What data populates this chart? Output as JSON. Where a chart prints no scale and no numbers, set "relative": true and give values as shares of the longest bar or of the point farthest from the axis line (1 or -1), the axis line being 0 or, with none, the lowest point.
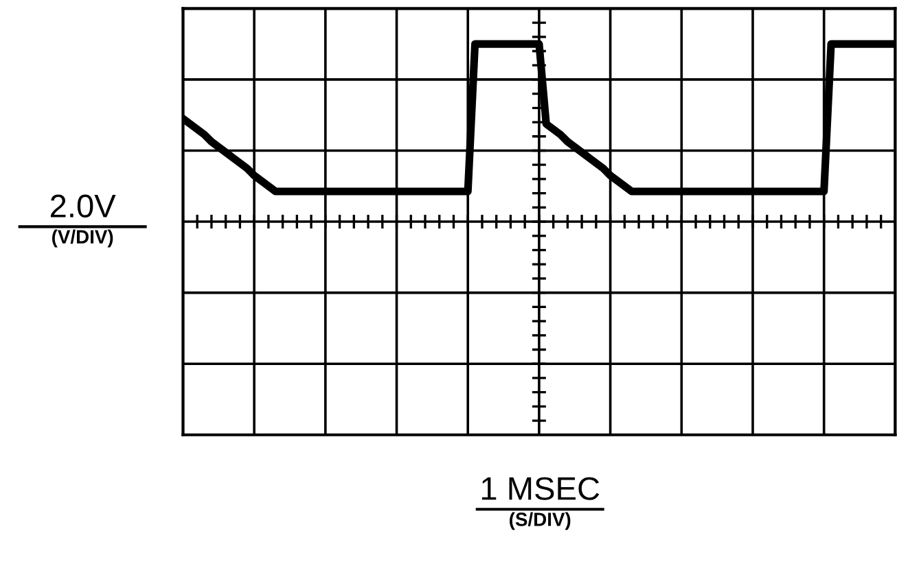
{
  "chart_data": {
    "type": "line",
    "relative": true,
    "annotations": [
      "1 MSEC\n(S/DIV)"
    ],
    "ylabel": "2.0V\n(V/DIV)",
    "categories": [
      null,
      null,
      null,
      null,
      null,
      null,
      null,
      null,
      null,
      null,
      null,
      null,
      null,
      null,
      null,
      null,
      null,
      null,
      null,
      null,
      null,
      null,
      null,
      null,
      null,
      null,
      null,
      null,
      null,
      null,
      null,
      null,
      null,
      null,
      null,
      null,
      null,
      null,
      null,
      null,
      null,
      null,
      null,
      null,
      null,
      null,
      null,
      null,
      null,
      null,
      null,
      null,
      null,
      null,
      null,
      null,
      null,
      null,
      null,
      null,
      null,
      null,
      null,
      null,
      null,
      null,
      null,
      null,
      null,
      null,
      null,
      null,
      null,
      null,
      null,
      null,
      null,
      null,
      null,
      null,
      null,
      null,
      null,
      null,
      null,
      null,
      null,
      null,
      null,
      null,
      null,
      null,
      null,
      null,
      null,
      null,
      null,
      null,
      null,
      null,
      null
    ],
    "series": [
      {
        "color": "#000000",
        "values": [
          0.58,
          0.55,
          0.52,
          0.49,
          0.45,
          0.42,
          0.39,
          0.36,
          0.33,
          0.3,
          0.26,
          0.23,
          0.2,
          0.17,
          0.17,
          0.17,
          0.17,
          0.17,
          0.17,
          0.17,
          0.17,
          0.17,
          0.17,
          0.17,
          0.17,
          0.17,
          0.17,
          0.17,
          0.17,
          0.17,
          0.17,
          0.17,
          0.17,
          0.17,
          0.17,
          0.17,
          0.17,
          0.17,
          0.17,
          0.17,
          0.17,
          1.0,
          1.0,
          1.0,
          1.0,
          1.0,
          1.0,
          1.0,
          1.0,
          1.0,
          1.0,
          0.55,
          0.52,
          0.49,
          0.45,
          0.42,
          0.39,
          0.36,
          0.33,
          0.3,
          0.26,
          0.23,
          0.2,
          0.17,
          0.17,
          0.17,
          0.17,
          0.17,
          0.17,
          0.17,
          0.17,
          0.17,
          0.17,
          0.17,
          0.17,
          0.17,
          0.17,
          0.17,
          0.17,
          0.17,
          0.17,
          0.17,
          0.17,
          0.17,
          0.17,
          0.17,
          0.17,
          0.17,
          0.17,
          0.17,
          0.17,
          1.0,
          1.0,
          1.0,
          1.0,
          1.0,
          1.0,
          1.0,
          1.0,
          1.0,
          1.0
        ]
      }
    ],
    "grid": true,
    "marker": "none",
    "line_style": "solid"
  }
}
